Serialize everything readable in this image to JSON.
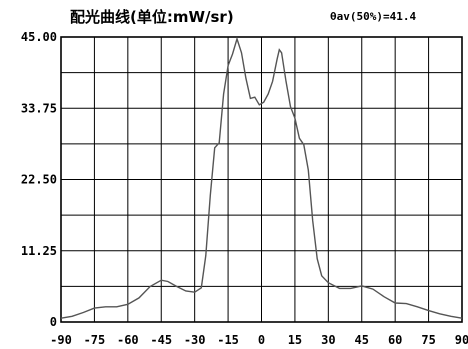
{
  "header": {
    "title": "配光曲线(单位:mW/sr)",
    "stat": "θav(50%)=41.4"
  },
  "chart_data": {
    "type": "line",
    "title": "配光曲线(单位:mW/sr)",
    "xlabel": "",
    "ylabel": "",
    "xlim": [
      -90,
      90
    ],
    "ylim": [
      0,
      45
    ],
    "x_ticks": [
      -90,
      -75,
      -60,
      -45,
      -30,
      -15,
      0,
      15,
      30,
      45,
      60,
      75,
      90
    ],
    "x_tick_labels": [
      "-90",
      "-75",
      "-60",
      "-45",
      "-30",
      "-15",
      "0",
      "15",
      "30",
      "45",
      "60",
      "75",
      "90"
    ],
    "y_ticks": [
      0,
      11.25,
      22.5,
      33.75,
      45
    ],
    "y_tick_labels": [
      "0",
      "11.25",
      "22.50",
      "33.75",
      "45.00"
    ],
    "grid": true,
    "series": [
      {
        "color": "#555555",
        "points": [
          [
            -90,
            0.6
          ],
          [
            -85,
            0.9
          ],
          [
            -80,
            1.5
          ],
          [
            -75,
            2.2
          ],
          [
            -70,
            2.4
          ],
          [
            -65,
            2.4
          ],
          [
            -60,
            2.8
          ],
          [
            -55,
            3.8
          ],
          [
            -50,
            5.6
          ],
          [
            -45,
            6.6
          ],
          [
            -42,
            6.4
          ],
          [
            -38,
            5.6
          ],
          [
            -34,
            4.9
          ],
          [
            -30,
            4.7
          ],
          [
            -27,
            5.4
          ],
          [
            -25,
            10.5
          ],
          [
            -23,
            20.0
          ],
          [
            -21,
            27.5
          ],
          [
            -19,
            28.3
          ],
          [
            -17,
            36.0
          ],
          [
            -15,
            40.5
          ],
          [
            -13,
            42.3
          ],
          [
            -11,
            44.7
          ],
          [
            -9,
            42.5
          ],
          [
            -7,
            38.5
          ],
          [
            -5,
            35.3
          ],
          [
            -3,
            35.5
          ],
          [
            -1,
            34.3
          ],
          [
            1,
            34.7
          ],
          [
            3,
            36.0
          ],
          [
            5,
            38.0
          ],
          [
            7,
            41.5
          ],
          [
            8,
            43.0
          ],
          [
            9,
            42.5
          ],
          [
            11,
            38.0
          ],
          [
            13,
            34.0
          ],
          [
            15,
            32.2
          ],
          [
            17,
            29.0
          ],
          [
            19,
            28.0
          ],
          [
            21,
            24.0
          ],
          [
            23,
            16.0
          ],
          [
            25,
            10.0
          ],
          [
            27,
            7.3
          ],
          [
            30,
            6.2
          ],
          [
            35,
            5.3
          ],
          [
            40,
            5.3
          ],
          [
            45,
            5.7
          ],
          [
            50,
            5.2
          ],
          [
            55,
            4.0
          ],
          [
            60,
            3.0
          ],
          [
            65,
            2.9
          ],
          [
            70,
            2.4
          ],
          [
            75,
            1.8
          ],
          [
            80,
            1.3
          ],
          [
            85,
            0.9
          ],
          [
            90,
            0.6
          ]
        ]
      }
    ]
  }
}
